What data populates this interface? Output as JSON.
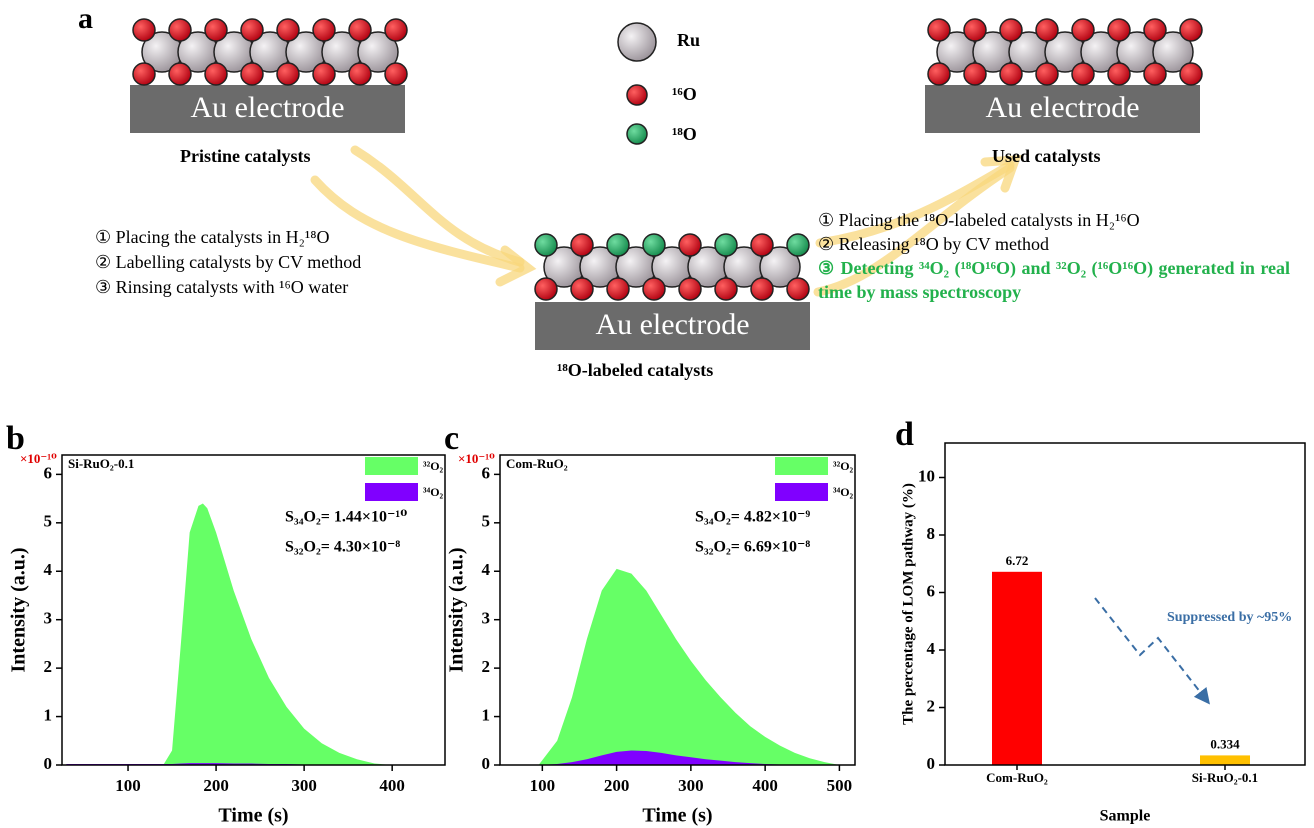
{
  "diagram": {
    "panel_label": "a",
    "electrode_label": "Au electrode",
    "pristine_label": "Pristine catalysts",
    "labeled_label": "¹⁸O-labeled catalysts",
    "used_label": "Used catalysts",
    "legend": [
      "Ru",
      "¹⁶O",
      "¹⁸O"
    ],
    "steps_left": [
      "① Placing the catalysts in H₂¹⁸O",
      "② Labelling catalysts by CV method",
      "③ Rinsing catalysts with ¹⁶O water"
    ],
    "steps_right": [
      "① Placing the ¹⁸O-labeled catalysts in H₂¹⁶O",
      "② Releasing ¹⁸O by CV method",
      "③ Detecting ³⁴O₂ (¹⁸O¹⁶O) and ³²O₂ (¹⁶O¹⁶O) generated in real time by mass spectroscopy"
    ]
  },
  "chart_data": [
    {
      "type": "area",
      "panel_label": "b",
      "title": "Si-RuO₂-0.1",
      "x_label": "Time (s)",
      "y_label": "Intensity (a.u.)",
      "y_multiplier": "×10⁻¹⁰",
      "x": [
        30,
        100,
        140,
        150,
        160,
        170,
        180,
        185,
        190,
        200,
        220,
        240,
        260,
        280,
        300,
        320,
        340,
        360,
        380,
        400,
        450
      ],
      "series": [
        {
          "name": "³²O₂",
          "color": "#66ff66",
          "values": [
            0,
            0,
            0,
            0.3,
            2.5,
            4.8,
            5.35,
            5.4,
            5.3,
            4.8,
            3.6,
            2.6,
            1.8,
            1.2,
            0.75,
            0.45,
            0.25,
            0.12,
            0.03,
            0,
            0
          ]
        },
        {
          "name": "³⁴O₂",
          "color": "#8000ff",
          "values": [
            0.02,
            0.02,
            0.02,
            0.02,
            0.03,
            0.04,
            0.04,
            0.04,
            0.04,
            0.04,
            0.03,
            0.03,
            0.02,
            0.02,
            0.01,
            0.01,
            0,
            0,
            0,
            0,
            0
          ]
        }
      ],
      "xlim": [
        25,
        460
      ],
      "ylim": [
        0,
        6.4
      ],
      "xticks": [
        100,
        200,
        300,
        400
      ],
      "yticks": [
        0,
        1,
        2,
        3,
        4,
        5,
        6
      ],
      "annotations": [
        "S₃₄O₂= 1.44×10⁻¹⁰",
        "S₃₂O₂= 4.30×10⁻⁸"
      ]
    },
    {
      "type": "area",
      "panel_label": "c",
      "title": "Com-RuO₂",
      "x_label": "Time (s)",
      "y_label": "Intensity (a.u.)",
      "y_multiplier": "×10⁻¹⁰",
      "x": [
        50,
        95,
        120,
        140,
        160,
        180,
        200,
        220,
        240,
        260,
        280,
        300,
        320,
        340,
        360,
        380,
        400,
        420,
        440,
        460,
        480,
        500,
        520
      ],
      "series": [
        {
          "name": "³²O₂",
          "color": "#66ff66",
          "values": [
            0,
            0,
            0.5,
            1.4,
            2.6,
            3.6,
            4.05,
            3.95,
            3.6,
            3.1,
            2.6,
            2.15,
            1.75,
            1.4,
            1.08,
            0.8,
            0.58,
            0.4,
            0.25,
            0.14,
            0.06,
            0,
            0
          ]
        },
        {
          "name": "³⁴O₂",
          "color": "#8000ff",
          "values": [
            0,
            0,
            0.02,
            0.06,
            0.12,
            0.2,
            0.27,
            0.3,
            0.29,
            0.25,
            0.2,
            0.16,
            0.12,
            0.09,
            0.06,
            0.04,
            0.02,
            0.01,
            0,
            0,
            0,
            0,
            0
          ]
        }
      ],
      "xlim": [
        43,
        521
      ],
      "ylim": [
        0,
        6.4
      ],
      "xticks": [
        100,
        200,
        300,
        400,
        500
      ],
      "yticks": [
        0,
        1,
        2,
        3,
        4,
        5,
        6
      ],
      "annotations": [
        "S₃₄O₂= 4.82×10⁻⁹",
        "S₃₂O₂= 6.69×10⁻⁸"
      ]
    },
    {
      "type": "bar",
      "panel_label": "d",
      "x_label": "Sample",
      "y_label": "The percentage of LOM pathway (%)",
      "categories": [
        "Com-RuO₂",
        "Si-RuO₂-0.1"
      ],
      "values": [
        6.72,
        0.334
      ],
      "colors": [
        "#ff0000",
        "#ffc000"
      ],
      "ylim": [
        0,
        11.2
      ],
      "yticks": [
        0,
        2,
        4,
        6,
        8,
        10
      ],
      "annotations": [
        "Suppressed by ~95%"
      ]
    }
  ]
}
